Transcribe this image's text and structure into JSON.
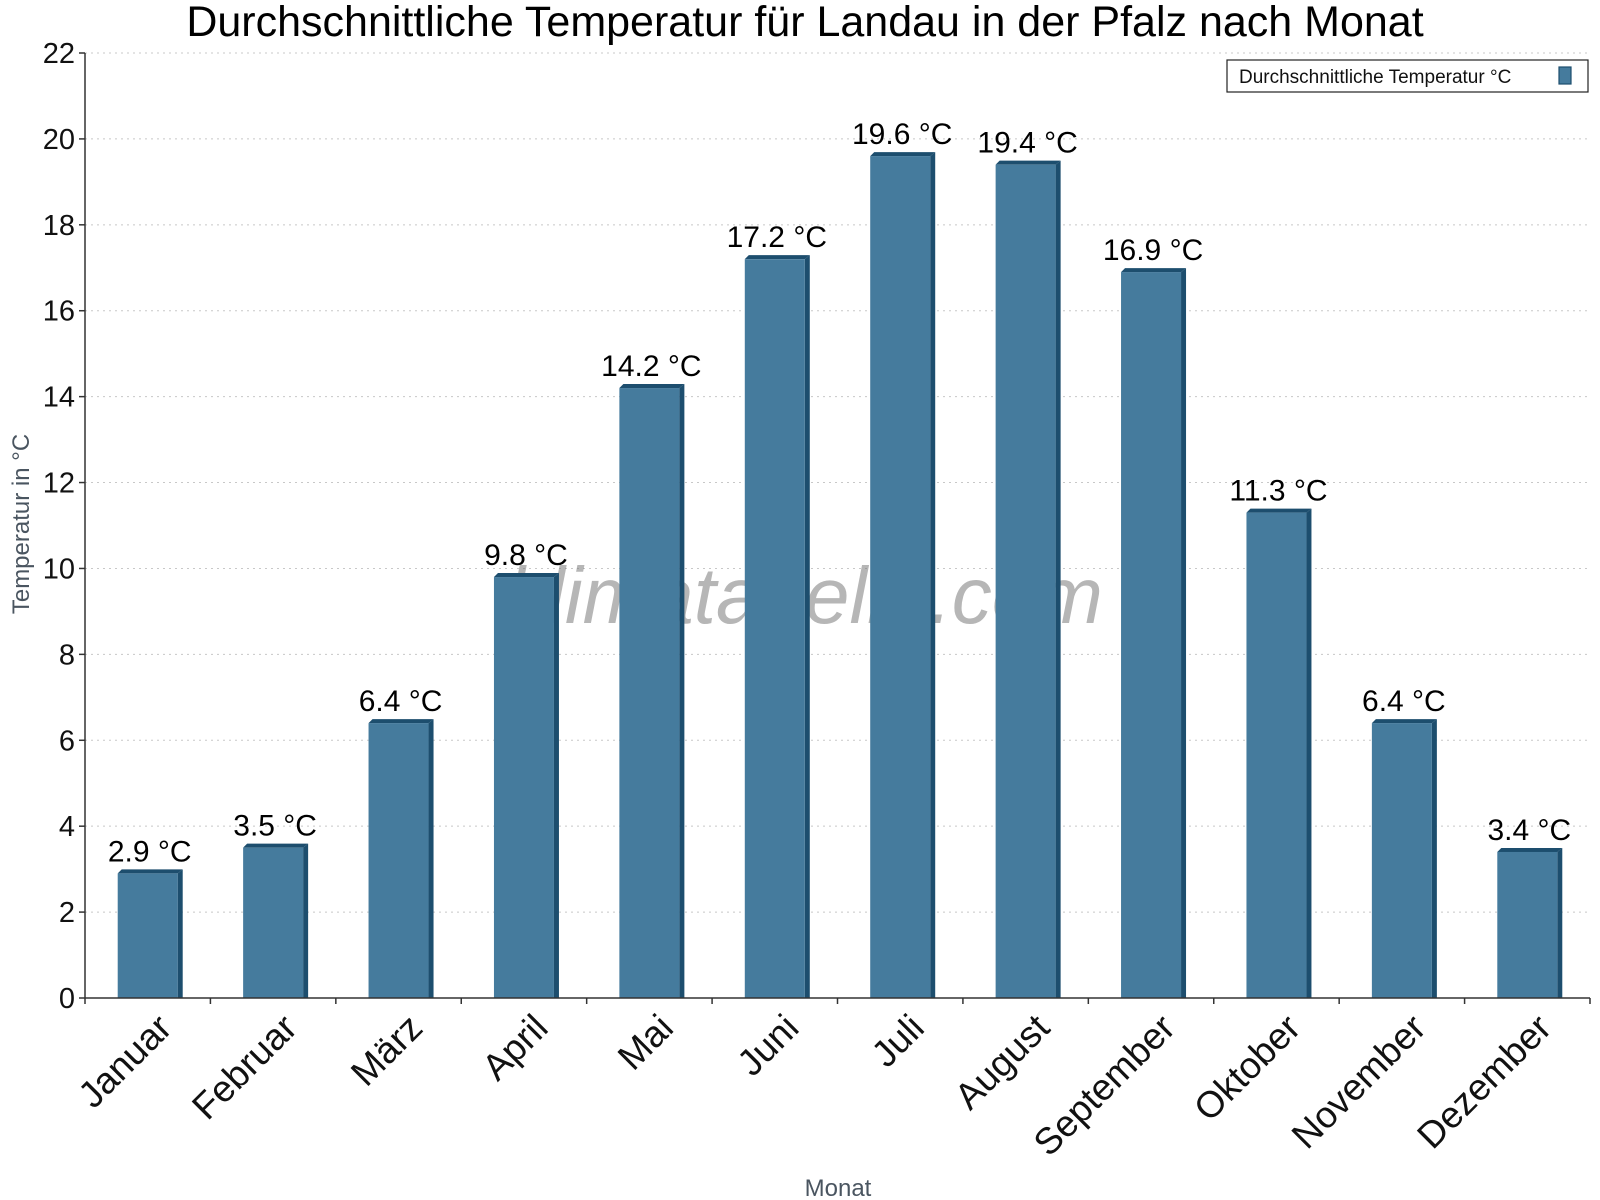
{
  "chart_data": {
    "type": "bar",
    "title": "Durchschnittliche Temperatur für Landau in der Pfalz nach Monat",
    "xlabel": "Monat",
    "ylabel": "Temperatur in °C",
    "categories": [
      "Januar",
      "Februar",
      "März",
      "April",
      "Mai",
      "Juni",
      "Juli",
      "August",
      "September",
      "Oktober",
      "November",
      "Dezember"
    ],
    "series": [
      {
        "name": "Durchschnittliche Temperatur °C",
        "values": [
          2.9,
          3.5,
          6.4,
          9.8,
          14.2,
          17.2,
          19.6,
          19.4,
          16.9,
          11.3,
          6.4,
          3.4
        ],
        "data_labels": [
          "2.9 °C",
          "3.5 °C",
          "6.4 °C",
          "9.8 °C",
          "14.2 °C",
          "17.2 °C",
          "19.6 °C",
          "19.4 °C",
          "16.9 °C",
          "11.3 °C",
          "6.4 °C",
          "3.4 °C"
        ],
        "color": "#457b9d",
        "shade_color": "#1d4e6e"
      }
    ],
    "ylim": [
      0,
      22
    ],
    "yticks": [
      0,
      2,
      4,
      6,
      8,
      10,
      12,
      14,
      16,
      18,
      20,
      22
    ],
    "grid": true,
    "legend_position": "top-right",
    "watermark": "klimatabelle.com"
  }
}
